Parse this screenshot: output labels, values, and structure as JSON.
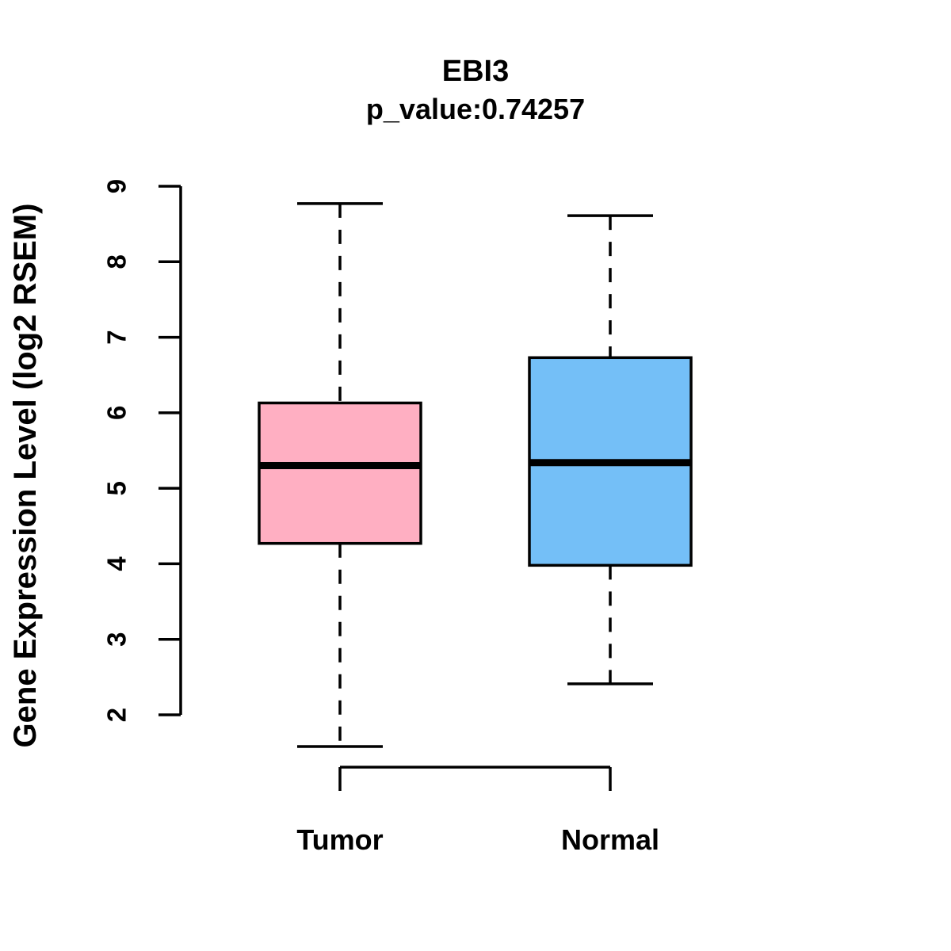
{
  "figure": {
    "background": "#ffffff",
    "stroke_color": "#000000"
  },
  "chart_data": {
    "type": "boxplot",
    "title": "EBI3",
    "subtitle": "p_value:0.74257",
    "xlabel": "",
    "ylabel": "Gene Expression Level (log2 RSEM)",
    "ylim": [
      2,
      9
    ],
    "yticks": [
      2,
      3,
      4,
      5,
      6,
      7,
      8,
      9
    ],
    "grid": false,
    "legend": "none",
    "categories": [
      "Tumor",
      "Normal"
    ],
    "series": [
      {
        "name": "Tumor",
        "color": "#ffafc2",
        "whisker_low": 1.58,
        "q1": 4.27,
        "median": 5.3,
        "q3": 6.13,
        "whisker_high": 8.77
      },
      {
        "name": "Normal",
        "color": "#74bff7",
        "whisker_low": 2.41,
        "q1": 3.98,
        "median": 5.34,
        "q3": 6.73,
        "whisker_high": 8.61
      }
    ]
  }
}
